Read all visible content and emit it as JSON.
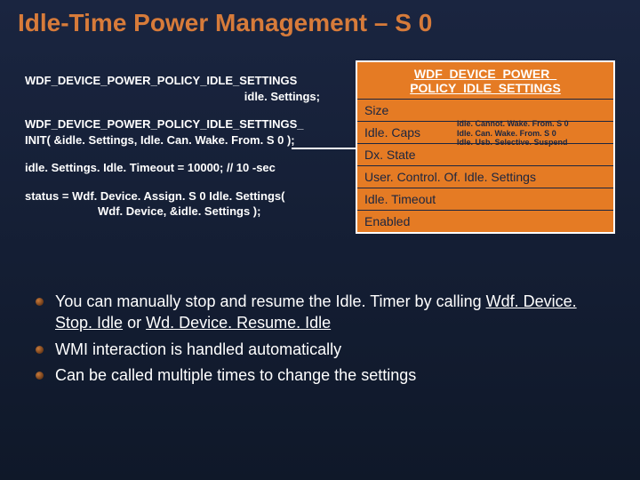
{
  "title": "Idle-Time Power Management – S 0",
  "code": {
    "line1a": "WDF_DEVICE_POWER_POLICY_IDLE_SETTINGS",
    "line1b": "idle. Settings;",
    "line2a": "WDF_DEVICE_POWER_POLICY_IDLE_SETTINGS_",
    "line2b": "INIT( &idle. Settings, Idle. Can. Wake. From. S 0 );",
    "line3": "idle. Settings. Idle. Timeout = 10000; // 10 -sec",
    "line4a": "status =  Wdf. Device. Assign. S 0 Idle. Settings(",
    "line4b": "Wdf. Device, &idle. Settings );"
  },
  "struct": {
    "header1": "WDF_DEVICE_POWER_",
    "header2": "POLICY_IDLE_SETTINGS",
    "rows": [
      "Size",
      "Idle. Caps",
      "Dx. State",
      "User. Control. Of. Idle. Settings",
      "Idle. Timeout",
      "Enabled"
    ],
    "enum1": "Idle. Cannot. Wake. From. S 0",
    "enum2": "Idle. Can. Wake. From. S 0",
    "enum3": "Idle. Usb. Selective. Suspend"
  },
  "bullets": {
    "b1_pre": "You can manually stop and resume the Idle. Timer by calling ",
    "b1_link1": "Wdf. Device. Stop. Idle",
    "b1_mid": " or ",
    "b1_link2": "Wd. Device. Resume. Idle",
    "b2": "WMI interaction is handled automatically",
    "b3": "Can be called multiple times to change the settings"
  }
}
